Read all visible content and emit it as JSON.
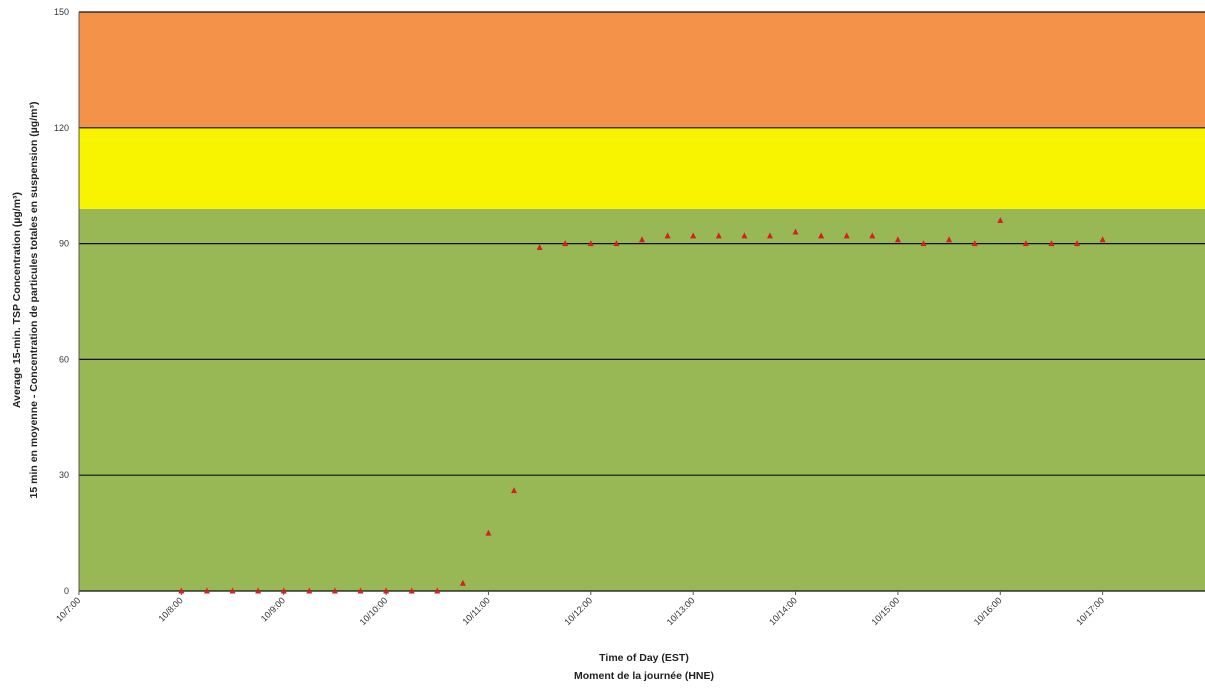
{
  "chart_data": {
    "type": "scatter",
    "title": "",
    "ylabel_line1": "Average 15-min. TSP Concentration (µg/m³)",
    "ylabel_line2": "15 min en moyenne - Concentration de particules totales en suspension (µg/m³)",
    "xlabel_line1": "Time of Day (EST)",
    "xlabel_line2": "Moment de la journée (HNE)",
    "ylim": [
      0,
      150
    ],
    "y_ticks": [
      0,
      30,
      60,
      90,
      120,
      150
    ],
    "x_range_hours": [
      7,
      18
    ],
    "x_ticks": [
      {
        "hour": 7,
        "label": "10/7:00"
      },
      {
        "hour": 8,
        "label": "10/8:00"
      },
      {
        "hour": 9,
        "label": "10/9:00"
      },
      {
        "hour": 10,
        "label": "10/10:00"
      },
      {
        "hour": 11,
        "label": "10/11:00"
      },
      {
        "hour": 12,
        "label": "10/12:00"
      },
      {
        "hour": 13,
        "label": "10/13:00"
      },
      {
        "hour": 14,
        "label": "10/14:00"
      },
      {
        "hour": 15,
        "label": "10/15:00"
      },
      {
        "hour": 16,
        "label": "10/16:00"
      },
      {
        "hour": 17,
        "label": "10/17:00"
      }
    ],
    "bands": [
      {
        "from": 0,
        "to": 99,
        "color": "#98b855"
      },
      {
        "from": 99,
        "to": 120,
        "color": "#f8f400"
      },
      {
        "from": 120,
        "to": 150,
        "color": "#f4924a"
      }
    ],
    "grid": true,
    "marker_color": "#d42020",
    "series": [
      {
        "points": [
          {
            "x": 8.0,
            "y": 0
          },
          {
            "x": 8.25,
            "y": 0
          },
          {
            "x": 8.5,
            "y": 0
          },
          {
            "x": 8.75,
            "y": 0
          },
          {
            "x": 9.0,
            "y": 0
          },
          {
            "x": 9.25,
            "y": 0
          },
          {
            "x": 9.5,
            "y": 0
          },
          {
            "x": 9.75,
            "y": 0
          },
          {
            "x": 10.0,
            "y": 0
          },
          {
            "x": 10.25,
            "y": 0
          },
          {
            "x": 10.5,
            "y": 0
          },
          {
            "x": 10.75,
            "y": 2
          },
          {
            "x": 11.0,
            "y": 15
          },
          {
            "x": 11.25,
            "y": 26
          },
          {
            "x": 11.5,
            "y": 89
          },
          {
            "x": 11.75,
            "y": 90
          },
          {
            "x": 12.0,
            "y": 90
          },
          {
            "x": 12.25,
            "y": 90
          },
          {
            "x": 12.5,
            "y": 91
          },
          {
            "x": 12.75,
            "y": 92
          },
          {
            "x": 13.0,
            "y": 92
          },
          {
            "x": 13.25,
            "y": 92
          },
          {
            "x": 13.5,
            "y": 92
          },
          {
            "x": 13.75,
            "y": 92
          },
          {
            "x": 14.0,
            "y": 93
          },
          {
            "x": 14.25,
            "y": 92
          },
          {
            "x": 14.5,
            "y": 92
          },
          {
            "x": 14.75,
            "y": 92
          },
          {
            "x": 15.0,
            "y": 91
          },
          {
            "x": 15.25,
            "y": 90
          },
          {
            "x": 15.5,
            "y": 91
          },
          {
            "x": 15.75,
            "y": 90
          },
          {
            "x": 16.0,
            "y": 96
          },
          {
            "x": 16.25,
            "y": 90
          },
          {
            "x": 16.5,
            "y": 90
          },
          {
            "x": 16.75,
            "y": 90
          },
          {
            "x": 17.0,
            "y": 91
          }
        ]
      }
    ]
  }
}
